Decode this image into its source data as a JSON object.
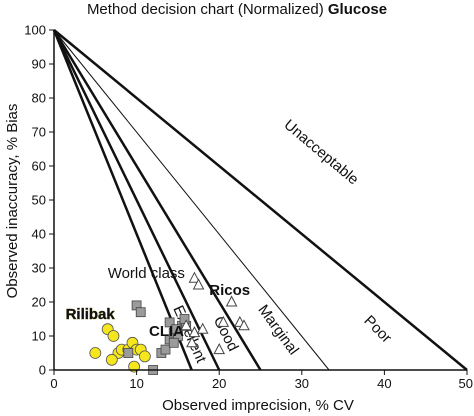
{
  "chart_data": {
    "type": "scatter",
    "title": "Method decision chart (Normalized)",
    "title_bold": "Glucose",
    "xlabel": "Observed imprecision, % CV",
    "ylabel": "Observed inaccuracy, % Bias",
    "xlim": [
      0,
      50
    ],
    "ylim": [
      0,
      100
    ],
    "x_ticks": [
      "0",
      "10",
      "20",
      "30",
      "40",
      "50"
    ],
    "y_ticks": [
      "0",
      "10",
      "20",
      "30",
      "40",
      "50",
      "60",
      "70",
      "80",
      "90",
      "100"
    ],
    "grid": false,
    "decision_lines": [
      {
        "name": "World class",
        "x_intercept": 16.67,
        "width": 2.5
      },
      {
        "name": "Excellent",
        "x_intercept": 20,
        "width": 2.5
      },
      {
        "name": "Good",
        "x_intercept": 25,
        "width": 2.5
      },
      {
        "name": "Marginal",
        "x_intercept": 33.3,
        "width": 1
      },
      {
        "name": "Poor",
        "x_intercept": 50,
        "width": 2.5
      }
    ],
    "zone_labels": [
      {
        "text": "Unacceptable",
        "x": 32,
        "y": 63,
        "angle": 40
      },
      {
        "text": "World class",
        "x": 6.5,
        "y": 27,
        "angle": 0
      },
      {
        "text": "Excellent",
        "x": 15.9,
        "y": 10,
        "angle": 66
      },
      {
        "text": "Good",
        "x": 20.3,
        "y": 10,
        "angle": 63
      },
      {
        "text": "Marginal",
        "x": 26.7,
        "y": 11,
        "angle": 54
      },
      {
        "text": "Poor",
        "x": 38.8,
        "y": 11,
        "angle": 45
      }
    ],
    "annotations": [
      {
        "text": "Ricos",
        "x": 18.8,
        "y": 22,
        "color": "#111111",
        "bold": true
      },
      {
        "text": "CLIA",
        "x": 11.5,
        "y": 10,
        "color": "#111111",
        "bold": true
      },
      {
        "text": "Rilibak",
        "x": 1.4,
        "y": 15,
        "color": "#f5e61e",
        "bold": true
      }
    ],
    "series": [
      {
        "marker": "circle",
        "color": "#f5e61e",
        "x": [
          5,
          6.5,
          7.2,
          7.8,
          8.2,
          9,
          9.5,
          10,
          10.5,
          11,
          7,
          9.7
        ],
        "y": [
          5,
          12,
          10,
          5,
          6,
          6,
          8,
          6,
          6,
          4,
          3,
          1
        ]
      },
      {
        "marker": "square",
        "color": "#9b9b9b",
        "x": [
          10,
          10.5,
          9,
          13,
          14,
          14.5,
          15,
          13.5,
          14.5,
          15.5,
          16,
          14,
          15.8,
          14.8,
          12
        ],
        "y": [
          19,
          17,
          5,
          5,
          9,
          11,
          10,
          6,
          8,
          13,
          13,
          14,
          15,
          12,
          0
        ]
      },
      {
        "marker": "triangle",
        "color": "#9b9b9b",
        "x": [
          17,
          17.5,
          21.5,
          22.5,
          23,
          16,
          17,
          18,
          20.5,
          16.7,
          20
        ],
        "y": [
          27,
          25,
          20,
          14,
          13,
          13,
          11,
          12,
          14,
          8,
          6
        ]
      }
    ]
  }
}
